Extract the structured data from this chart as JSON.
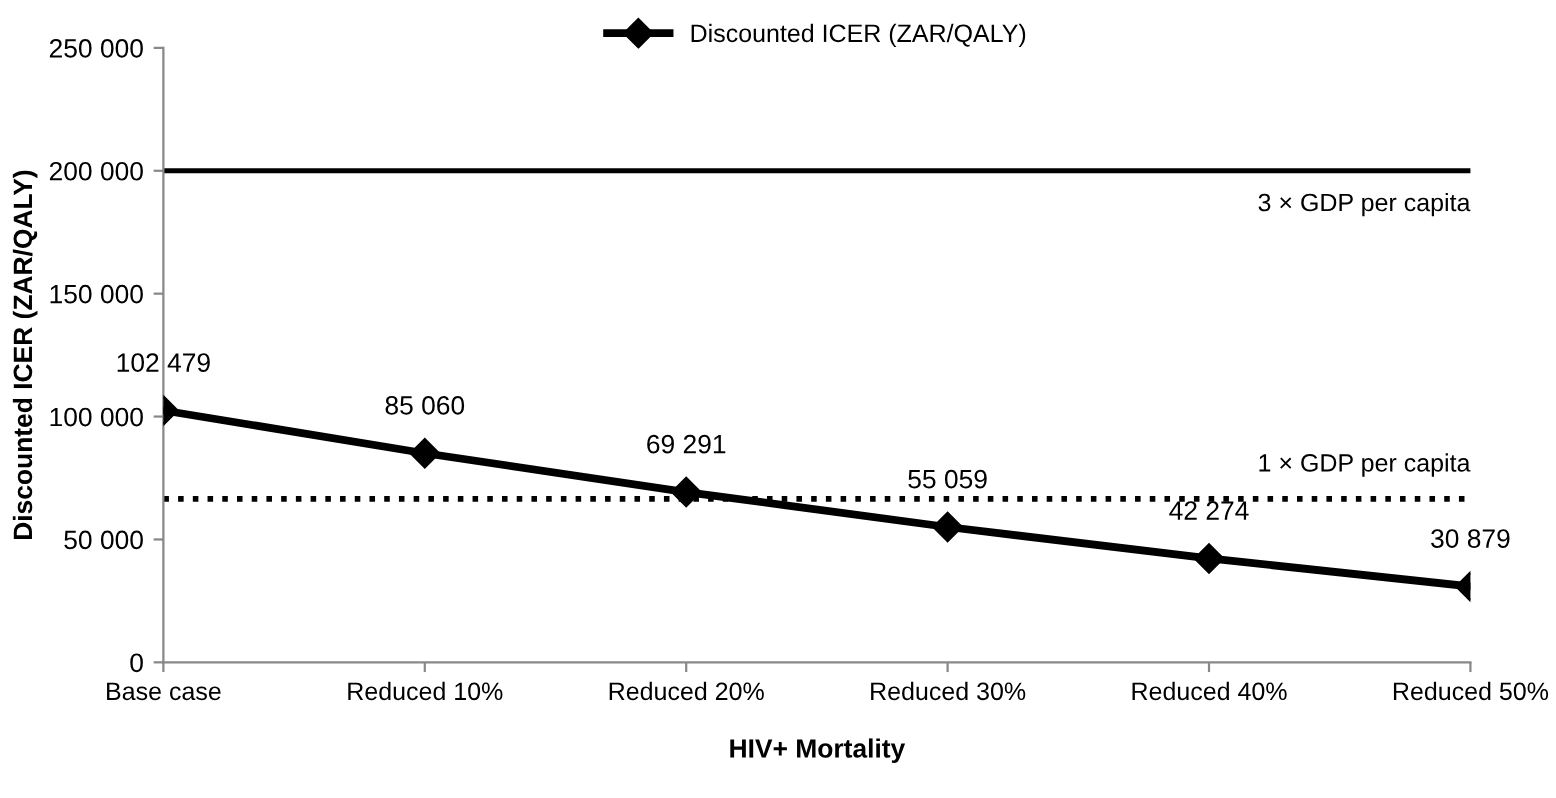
{
  "chart_data": {
    "type": "line",
    "xlabel": "HIV+ Mortality",
    "ylabel": "Discounted ICER (ZAR/QALY)",
    "categories": [
      "Base case",
      "Reduced 10%",
      "Reduced 20%",
      "Reduced 30%",
      "Reduced 40%",
      "Reduced 50%"
    ],
    "series": [
      {
        "name": "Discounted ICER (ZAR/QALY)",
        "color": "#000000",
        "values": [
          102479,
          85060,
          69291,
          55059,
          42274,
          30879
        ],
        "value_labels": [
          "102 479",
          "85 060",
          "69 291",
          "55 059",
          "42 274",
          "30 879"
        ]
      }
    ],
    "ylim": [
      0,
      250000
    ],
    "yticks": [
      {
        "value": 0,
        "label": "0"
      },
      {
        "value": 50000,
        "label": "50 000"
      },
      {
        "value": 100000,
        "label": "100 000"
      },
      {
        "value": 150000,
        "label": "150 000"
      },
      {
        "value": 200000,
        "label": "200 000"
      },
      {
        "value": 250000,
        "label": "250 000"
      }
    ],
    "ref_lines": [
      {
        "axis": "y",
        "value": 200000,
        "label": "3 × GDP per capita",
        "color": "#000000",
        "line_style": "solid"
      },
      {
        "axis": "y",
        "value": 66500,
        "label": "1 × GDP per capita",
        "color": "#000000",
        "line_style": "dotted"
      }
    ],
    "marker": "diamond",
    "line_style": "solid",
    "legend": "top",
    "grid": false
  }
}
